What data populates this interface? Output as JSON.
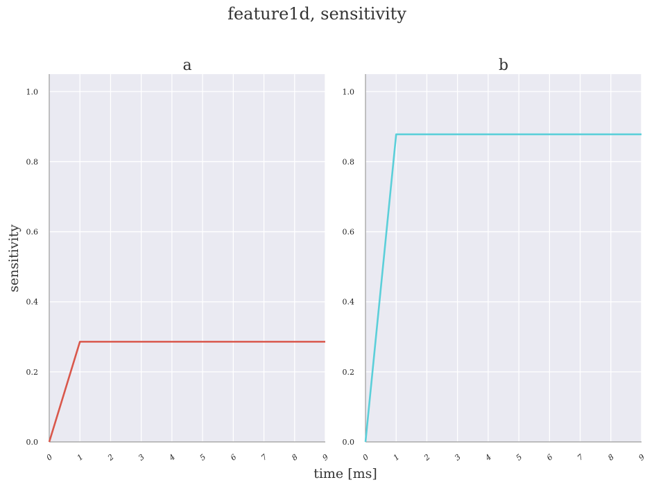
{
  "figure": {
    "suptitle": "feature1d, sensitivity",
    "xlabel": "time [ms]",
    "ylabel": "sensitivity"
  },
  "colors": {
    "background": "#eaeaf2",
    "grid": "#ffffff",
    "spine": "#999999",
    "series_a": "#d9574b",
    "series_b": "#5bcfd9"
  },
  "chart_data": [
    {
      "type": "line",
      "title": "a",
      "xlabel": "time [ms]",
      "ylabel": "sensitivity",
      "xlim": [
        0,
        9
      ],
      "ylim": [
        0,
        1.05
      ],
      "xticks": [
        "0",
        "1",
        "2",
        "3",
        "4",
        "5",
        "6",
        "7",
        "8",
        "9"
      ],
      "yticks": [
        "0.0",
        "0.2",
        "0.4",
        "0.6",
        "0.8",
        "1.0"
      ],
      "grid": true,
      "series": [
        {
          "x": [
            0,
            1,
            2,
            3,
            4,
            5,
            6,
            7,
            8,
            9
          ],
          "y": [
            0.0,
            0.286,
            0.286,
            0.286,
            0.286,
            0.286,
            0.286,
            0.286,
            0.286,
            0.286
          ],
          "color": "#d9574b"
        }
      ]
    },
    {
      "type": "line",
      "title": "b",
      "xlabel": "time [ms]",
      "ylabel": "",
      "xlim": [
        0,
        9
      ],
      "ylim": [
        0,
        1.05
      ],
      "xticks": [
        "0",
        "1",
        "2",
        "3",
        "4",
        "5",
        "6",
        "7",
        "8",
        "9"
      ],
      "yticks": [
        "0.0",
        "0.2",
        "0.4",
        "0.6",
        "0.8",
        "1.0"
      ],
      "grid": true,
      "series": [
        {
          "x": [
            0,
            1,
            2,
            3,
            4,
            5,
            6,
            7,
            8,
            9
          ],
          "y": [
            0.0,
            0.878,
            0.878,
            0.878,
            0.878,
            0.878,
            0.878,
            0.878,
            0.878,
            0.878
          ],
          "color": "#5bcfd9"
        }
      ]
    }
  ]
}
